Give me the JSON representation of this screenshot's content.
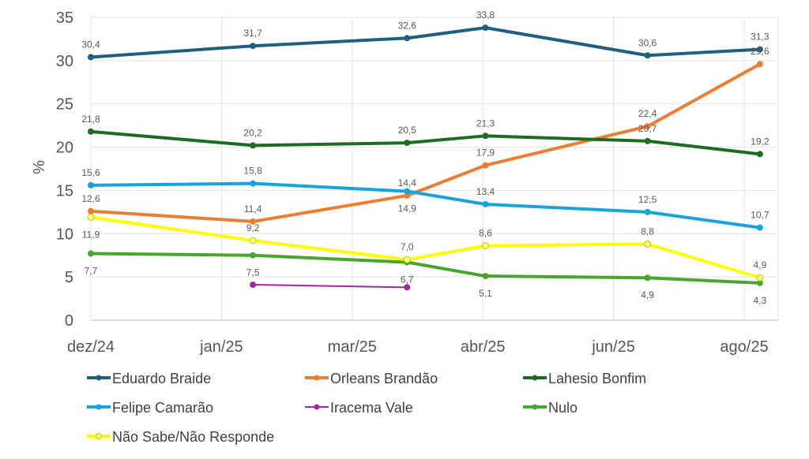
{
  "chart_data": {
    "type": "line",
    "title": "",
    "xlabel": "",
    "ylabel": "%",
    "ylim": [
      0,
      35
    ],
    "yticks": [
      0,
      5,
      10,
      15,
      20,
      25,
      30,
      35
    ],
    "x_tick_labels": [
      "dez/24",
      "jan/25",
      "mar/25",
      "abr/25",
      "jun/25",
      "ago/25"
    ],
    "grid": true,
    "legend_placement": "bottom",
    "x": [
      0,
      1.24,
      2.42,
      3.02,
      4.26,
      5.12
    ],
    "series": [
      {
        "name": "Eduardo Braide",
        "color": "#1f5f7f",
        "values": [
          30.4,
          31.7,
          32.6,
          33.8,
          30.6,
          31.3
        ],
        "labels": [
          "30,4",
          "31,7",
          "32,6",
          "33,8",
          "30,6",
          "31,3"
        ],
        "label_position": "above",
        "marker": "filled",
        "width": 4
      },
      {
        "name": "Orleans Brandão",
        "color": "#ed7d31",
        "values": [
          12.6,
          11.4,
          14.4,
          17.9,
          22.4,
          29.6
        ],
        "labels": [
          "12,6",
          "11,4",
          "14,4",
          "17,9",
          "22,4",
          "29,6"
        ],
        "label_position": "above",
        "marker": "filled",
        "width": 4
      },
      {
        "name": "Lahesio Bonfim",
        "color": "#1e6b23",
        "values": [
          21.8,
          20.2,
          20.5,
          21.3,
          20.7,
          19.2
        ],
        "labels": [
          "21,8",
          "20,2",
          "20,5",
          "21,3",
          "20,7",
          "19,2"
        ],
        "label_position": "above",
        "marker": "filled",
        "width": 4
      },
      {
        "name": "Felipe Camarão",
        "color": "#18a3dc",
        "values": [
          15.6,
          15.8,
          14.9,
          13.4,
          12.5,
          10.7
        ],
        "labels": [
          "15,6",
          "15,8",
          "14,9",
          "13,4",
          "12,5",
          "10,7"
        ],
        "label_position": "above",
        "marker": "filled",
        "width": 4
      },
      {
        "name": "Iracema Vale",
        "color": "#a0289c",
        "values": [
          null,
          4.1,
          3.8,
          null,
          null,
          null
        ],
        "labels": [],
        "label_position": "above",
        "marker": "filled",
        "width": 2
      },
      {
        "name": "Nulo",
        "color": "#4aa52e",
        "values": [
          7.7,
          7.5,
          6.7,
          5.1,
          4.9,
          4.3
        ],
        "labels": [
          "7,7",
          "7,5",
          "6,7",
          "5,1",
          "4,9",
          "4,3"
        ],
        "label_position": "below",
        "marker": "filled",
        "width": 4
      },
      {
        "name": "Não Sabe/Não Responde",
        "color": "#ffff00",
        "values": [
          11.9,
          9.2,
          7.0,
          8.6,
          8.8,
          4.9
        ],
        "labels": [
          "11,9",
          "9,2",
          "7,0",
          "8,6",
          "8,8",
          "4,9"
        ],
        "label_position": "above",
        "marker": "hollow",
        "width": 4
      }
    ]
  }
}
